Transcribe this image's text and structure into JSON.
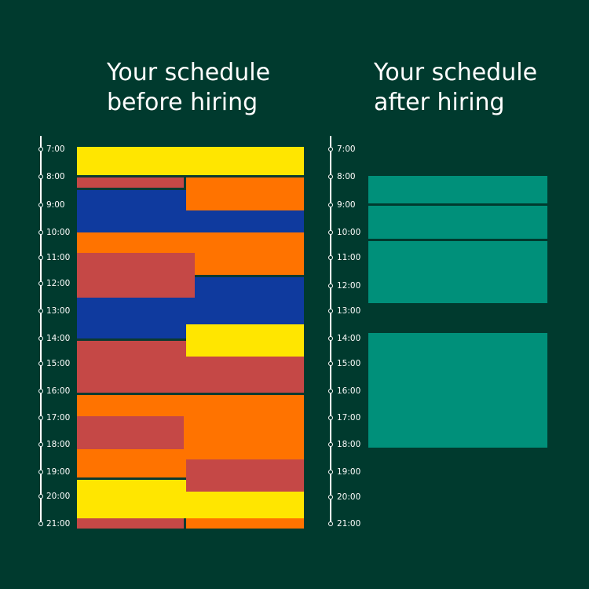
{
  "before": {
    "title_line1": "Your schedule",
    "title_line2": "before hiring"
  },
  "after": {
    "title_line1": "Your schedule",
    "title_line2": "after hiring"
  },
  "time_labels": [
    "7:00",
    "8:00",
    "9:00",
    "10:00",
    "11:00",
    "12:00",
    "13:00",
    "14:00",
    "15:00",
    "16:00",
    "17:00",
    "18:00",
    "19:00",
    "20:00",
    "21:00"
  ],
  "colors": {
    "background": "#003a2e",
    "yellow": "#ffe600",
    "orange": "#ff7300",
    "red": "#c54846",
    "blue": "#0f3a9e",
    "teal": "#00907a"
  }
}
